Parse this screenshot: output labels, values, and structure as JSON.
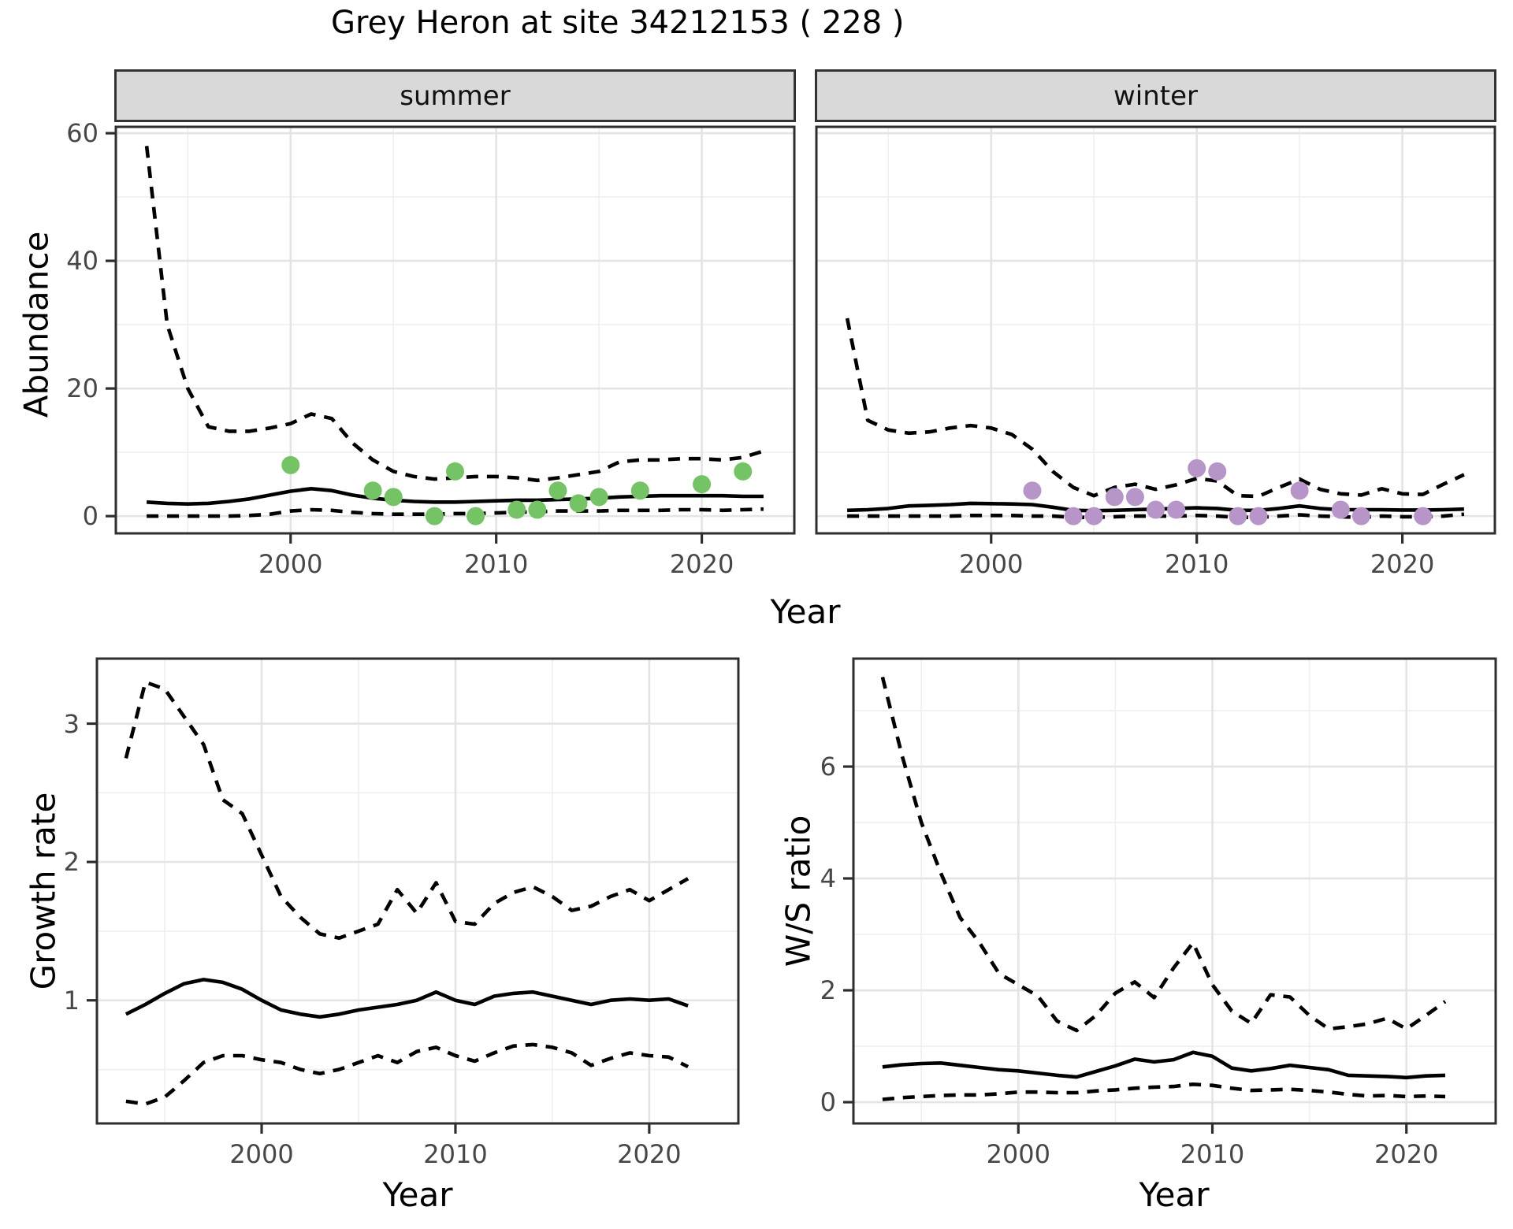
{
  "title": "Grey Heron at site 34212153 ( 228 )",
  "colors": {
    "summer_point": "#74c365",
    "winter_point": "#b795c9",
    "line": "#000000",
    "grid_major": "#e4e4e4",
    "grid_minor": "#efefef",
    "panel_border": "#2e2e2e",
    "strip_bg": "#d9d9d9",
    "tick_text": "#474747"
  },
  "top": {
    "facets": [
      "summer",
      "winter"
    ],
    "ylabel": "Abundance",
    "xlabel": "Year",
    "ytick_labels": [
      "0",
      "20",
      "40",
      "60"
    ],
    "ytick_values": [
      0,
      20,
      40,
      60
    ],
    "xtick_labels": [
      "2000",
      "2010",
      "2020"
    ],
    "xtick_values": [
      2000,
      2010,
      2020
    ]
  },
  "growth": {
    "ylabel": "Growth rate",
    "xlabel": "Year",
    "ytick_labels": [
      "1",
      "2",
      "3"
    ],
    "ytick_values": [
      1,
      2,
      3
    ],
    "xtick_labels": [
      "2000",
      "2010",
      "2020"
    ],
    "xtick_values": [
      2000,
      2010,
      2020
    ]
  },
  "ws": {
    "ylabel": "W/S ratio",
    "xlabel": "Year",
    "ytick_labels": [
      "0",
      "2",
      "4",
      "6"
    ],
    "ytick_values": [
      0,
      2,
      4,
      6
    ],
    "xtick_labels": [
      "2000",
      "2010",
      "2020"
    ],
    "xtick_values": [
      2000,
      2010,
      2020
    ]
  },
  "chart_data": [
    {
      "type": "line",
      "panel": "abundance-summer",
      "facet": "summer",
      "title": "Abundance (summer)",
      "xlabel": "Year",
      "ylabel": "Abundance",
      "xlim": [
        1991.5,
        2024.5
      ],
      "ylim": [
        -2.7,
        61
      ],
      "grid": true,
      "x": [
        1993,
        1994,
        1995,
        1996,
        1997,
        1998,
        1999,
        2000,
        2001,
        2002,
        2003,
        2004,
        2005,
        2006,
        2007,
        2008,
        2009,
        2010,
        2011,
        2012,
        2013,
        2014,
        2015,
        2016,
        2017,
        2018,
        2019,
        2020,
        2021,
        2022,
        2023
      ],
      "series": [
        {
          "name": "upper CI",
          "style": "dashed",
          "values": [
            58,
            30,
            20,
            14,
            13.3,
            13.3,
            13.8,
            14.5,
            16,
            15.3,
            11.5,
            8.8,
            7,
            6.2,
            5.8,
            6,
            6.2,
            6.2,
            6,
            5.6,
            6,
            6.5,
            7,
            8.5,
            8.8,
            8.8,
            9,
            9,
            8.8,
            9.2,
            10.2
          ]
        },
        {
          "name": "estimate",
          "style": "solid",
          "values": [
            2.2,
            2.0,
            1.9,
            2.0,
            2.3,
            2.7,
            3.3,
            3.9,
            4.3,
            4.0,
            3.3,
            2.8,
            2.5,
            2.3,
            2.2,
            2.2,
            2.3,
            2.4,
            2.5,
            2.5,
            2.6,
            2.7,
            2.8,
            3.0,
            3.1,
            3.2,
            3.2,
            3.2,
            3.2,
            3.1,
            3.1
          ]
        },
        {
          "name": "lower CI",
          "style": "dashed",
          "values": [
            0,
            0,
            0,
            0,
            0,
            0.1,
            0.3,
            0.8,
            1.0,
            0.9,
            0.6,
            0.4,
            0.3,
            0.3,
            0.3,
            0.4,
            0.4,
            0.5,
            0.6,
            0.7,
            0.8,
            0.8,
            0.8,
            0.9,
            0.9,
            0.9,
            1.0,
            1.0,
            0.9,
            1.0,
            1.1
          ]
        }
      ],
      "points": {
        "name": "observed counts",
        "color": "#74c365",
        "xy": [
          [
            2000,
            8
          ],
          [
            2004,
            4
          ],
          [
            2005,
            3
          ],
          [
            2007,
            0
          ],
          [
            2008,
            7
          ],
          [
            2009,
            0
          ],
          [
            2011,
            1
          ],
          [
            2012,
            1
          ],
          [
            2013,
            4
          ],
          [
            2014,
            2
          ],
          [
            2015,
            3
          ],
          [
            2017,
            4
          ],
          [
            2020,
            5
          ],
          [
            2022,
            7
          ]
        ]
      }
    },
    {
      "type": "line",
      "panel": "abundance-winter",
      "facet": "winter",
      "title": "Abundance (winter)",
      "xlabel": "Year",
      "ylabel": "Abundance",
      "xlim": [
        1991.5,
        2024.5
      ],
      "ylim": [
        -2.7,
        61
      ],
      "grid": true,
      "x": [
        1993,
        1994,
        1995,
        1996,
        1997,
        1998,
        1999,
        2000,
        2001,
        2002,
        2003,
        2004,
        2005,
        2006,
        2007,
        2008,
        2009,
        2010,
        2011,
        2012,
        2013,
        2014,
        2015,
        2016,
        2017,
        2018,
        2019,
        2020,
        2021,
        2022,
        2023
      ],
      "series": [
        {
          "name": "upper CI",
          "style": "dashed",
          "values": [
            31,
            15,
            13.5,
            13,
            13.2,
            13.8,
            14.2,
            13.8,
            12.8,
            10.5,
            7,
            4.5,
            3.2,
            4.5,
            5,
            4.2,
            4.9,
            5.9,
            5.5,
            3.2,
            3.1,
            4.5,
            5.8,
            4.2,
            3.5,
            3.3,
            4.3,
            3.5,
            3.4,
            5,
            6.5
          ]
        },
        {
          "name": "estimate",
          "style": "solid",
          "values": [
            0.9,
            1.0,
            1.2,
            1.6,
            1.7,
            1.8,
            2.0,
            1.95,
            1.9,
            1.8,
            1.4,
            0.9,
            0.85,
            0.9,
            1.0,
            1.1,
            1.2,
            1.3,
            1.2,
            0.9,
            0.9,
            1.2,
            1.6,
            1.2,
            1.0,
            1.0,
            1.0,
            0.95,
            0.95,
            1.0,
            1.1
          ]
        },
        {
          "name": "lower CI",
          "style": "dashed",
          "values": [
            0,
            0,
            0,
            0,
            0,
            0,
            0.1,
            0.1,
            0.1,
            0,
            0,
            -0.2,
            -0.2,
            -0.1,
            0,
            0,
            0,
            0.1,
            0,
            -0.2,
            -0.2,
            0,
            0.2,
            0,
            -0.1,
            -0.2,
            0,
            -0.1,
            -0.1,
            0,
            0.3
          ]
        }
      ],
      "points": {
        "name": "observed counts",
        "color": "#b795c9",
        "xy": [
          [
            2002,
            4
          ],
          [
            2004,
            0
          ],
          [
            2005,
            0
          ],
          [
            2006,
            3
          ],
          [
            2007,
            3
          ],
          [
            2008,
            1
          ],
          [
            2009,
            1
          ],
          [
            2010,
            7.5
          ],
          [
            2011,
            7
          ],
          [
            2012,
            0
          ],
          [
            2013,
            0
          ],
          [
            2015,
            4
          ],
          [
            2017,
            1
          ],
          [
            2018,
            0
          ],
          [
            2021,
            0
          ]
        ]
      }
    },
    {
      "type": "line",
      "panel": "growth-rate",
      "title": "Growth rate",
      "xlabel": "Year",
      "ylabel": "Growth rate",
      "xlim": [
        1991.5,
        2024.6
      ],
      "ylim": [
        0.11,
        3.47
      ],
      "grid": true,
      "x": [
        1993,
        1994,
        1995,
        1996,
        1997,
        1998,
        1999,
        2000,
        2001,
        2002,
        2003,
        2004,
        2005,
        2006,
        2007,
        2008,
        2009,
        2010,
        2011,
        2012,
        2013,
        2014,
        2015,
        2016,
        2017,
        2018,
        2019,
        2020,
        2021,
        2022
      ],
      "series": [
        {
          "name": "upper CI",
          "style": "dashed",
          "values": [
            2.75,
            3.3,
            3.25,
            3.05,
            2.85,
            2.45,
            2.35,
            2.05,
            1.75,
            1.6,
            1.48,
            1.45,
            1.5,
            1.55,
            1.8,
            1.63,
            1.85,
            1.57,
            1.55,
            1.7,
            1.78,
            1.82,
            1.75,
            1.65,
            1.68,
            1.75,
            1.8,
            1.72,
            1.8,
            1.88
          ]
        },
        {
          "name": "estimate",
          "style": "solid",
          "values": [
            0.9,
            0.97,
            1.05,
            1.12,
            1.15,
            1.13,
            1.08,
            1.0,
            0.93,
            0.9,
            0.88,
            0.9,
            0.93,
            0.95,
            0.97,
            1.0,
            1.06,
            1.0,
            0.97,
            1.03,
            1.05,
            1.06,
            1.03,
            1.0,
            0.97,
            1.0,
            1.01,
            1.0,
            1.01,
            0.96
          ]
        },
        {
          "name": "lower CI",
          "style": "dashed",
          "values": [
            0.27,
            0.25,
            0.3,
            0.42,
            0.55,
            0.6,
            0.6,
            0.57,
            0.55,
            0.5,
            0.47,
            0.5,
            0.55,
            0.6,
            0.55,
            0.63,
            0.66,
            0.6,
            0.56,
            0.62,
            0.67,
            0.68,
            0.66,
            0.62,
            0.53,
            0.58,
            0.62,
            0.6,
            0.59,
            0.52
          ]
        }
      ]
    },
    {
      "type": "line",
      "panel": "ws-ratio",
      "title": "W/S ratio",
      "xlabel": "Year",
      "ylabel": "W/S ratio",
      "xlim": [
        1991.5,
        2024.6
      ],
      "ylim": [
        -0.38,
        7.93
      ],
      "grid": true,
      "x": [
        1993,
        1994,
        1995,
        1996,
        1997,
        1998,
        1999,
        2000,
        2001,
        2002,
        2003,
        2004,
        2005,
        2006,
        2007,
        2008,
        2009,
        2010,
        2011,
        2012,
        2013,
        2014,
        2015,
        2016,
        2017,
        2018,
        2019,
        2020,
        2021,
        2022
      ],
      "series": [
        {
          "name": "upper CI",
          "style": "dashed",
          "values": [
            7.6,
            6.2,
            5.0,
            4.1,
            3.3,
            2.85,
            2.3,
            2.1,
            1.9,
            1.45,
            1.28,
            1.55,
            1.95,
            2.15,
            1.87,
            2.4,
            2.85,
            2.1,
            1.63,
            1.41,
            1.92,
            1.88,
            1.55,
            1.31,
            1.35,
            1.4,
            1.5,
            1.31,
            1.55,
            1.8
          ]
        },
        {
          "name": "estimate",
          "style": "solid",
          "values": [
            0.63,
            0.67,
            0.69,
            0.7,
            0.66,
            0.62,
            0.58,
            0.56,
            0.52,
            0.48,
            0.45,
            0.55,
            0.65,
            0.77,
            0.72,
            0.76,
            0.89,
            0.82,
            0.61,
            0.56,
            0.6,
            0.66,
            0.62,
            0.58,
            0.48,
            0.47,
            0.46,
            0.44,
            0.47,
            0.48
          ]
        },
        {
          "name": "lower CI",
          "style": "dashed",
          "values": [
            0.05,
            0.08,
            0.1,
            0.12,
            0.13,
            0.13,
            0.15,
            0.18,
            0.18,
            0.17,
            0.17,
            0.2,
            0.22,
            0.25,
            0.27,
            0.28,
            0.32,
            0.3,
            0.25,
            0.21,
            0.22,
            0.23,
            0.21,
            0.18,
            0.14,
            0.11,
            0.12,
            0.1,
            0.11,
            0.1
          ]
        }
      ]
    }
  ]
}
